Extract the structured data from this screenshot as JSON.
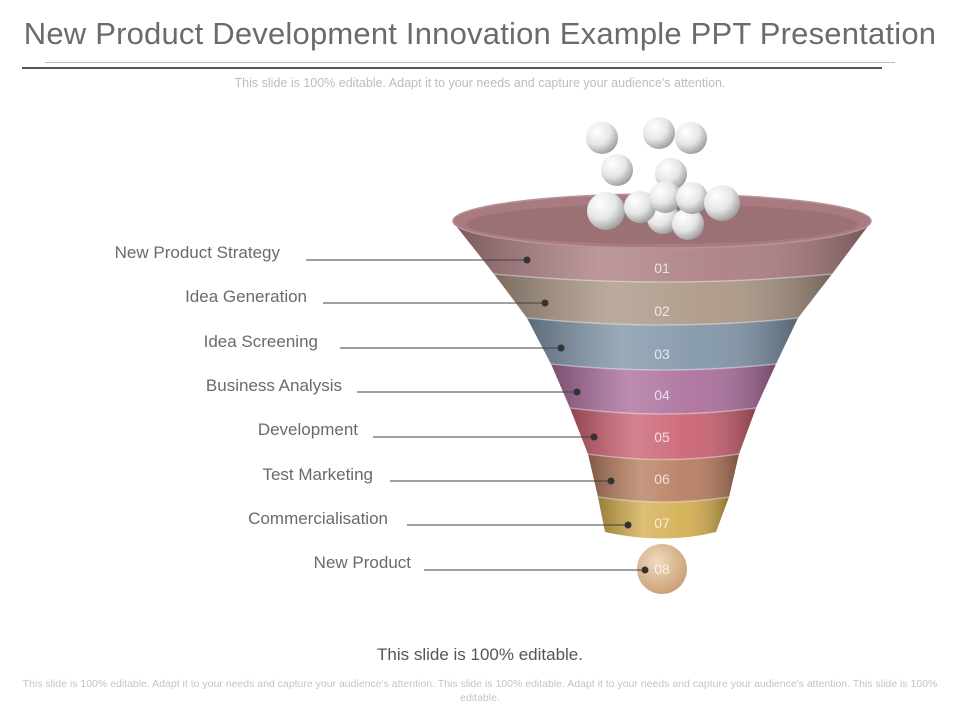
{
  "slide": {
    "title": "New Product Development Innovation Example PPT Presentation",
    "subtitle": "This slide is 100% editable. Adapt it to your needs and capture your audience's attention.",
    "caption": "This slide is 100% editable.",
    "footer": "This slide is 100% editable. Adapt it to your needs and capture your audience's attention. This slide is 100% editable. Adapt it to your needs and capture your audience's attention. This slide is 100% editable."
  },
  "steps": [
    {
      "number": "01",
      "label": "New Product Strategy",
      "color": "#a97b80"
    },
    {
      "number": "02",
      "label": "Idea Generation",
      "color": "#a99482"
    },
    {
      "number": "03",
      "label": "Idea Screening",
      "color": "#7e93a6"
    },
    {
      "number": "04",
      "label": "Business Analysis",
      "color": "#a96c9a"
    },
    {
      "number": "05",
      "label": "Development",
      "color": "#c95e6e"
    },
    {
      "number": "06",
      "label": "Test Marketing",
      "color": "#b57a5c"
    },
    {
      "number": "07",
      "label": "Commercialisation",
      "color": "#d3ad4e"
    },
    {
      "number": "08",
      "label": "New Product",
      "color": "#dcb890"
    }
  ]
}
